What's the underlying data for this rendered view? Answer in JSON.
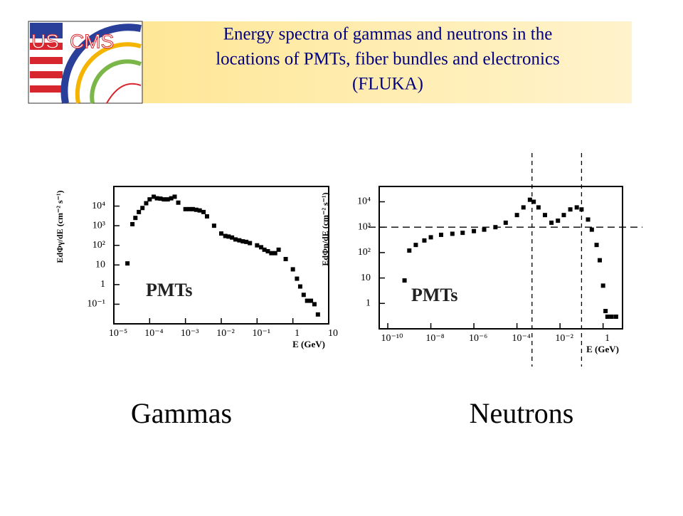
{
  "header": {
    "title_lines": [
      "Energy spectra of gammas and neutrons in the",
      "locations of PMTs, fiber bundles and electronics",
      "(FLUKA)"
    ]
  },
  "logo": {
    "left": "US",
    "right": "CMS"
  },
  "chart_data": [
    {
      "type": "scatter",
      "caption": "Gammas",
      "annotation": "PMTs",
      "xlabel": "E (GeV)",
      "ylabel": "EdΦγ/dE (cm⁻² s⁻¹)",
      "log_x": true,
      "log_y": true,
      "marker": "square",
      "color": "#000000",
      "x": [
        2.4e-05,
        3.3e-05,
        4e-05,
        5e-05,
        6.3e-05,
        8e-05,
        0.0001,
        0.00013,
        0.00016,
        0.0002,
        0.00025,
        0.00032,
        0.0004,
        0.0005,
        0.00063,
        0.001,
        0.0013,
        0.0016,
        0.002,
        0.0025,
        0.0032,
        0.004,
        0.0063,
        0.01,
        0.013,
        0.016,
        0.02,
        0.025,
        0.032,
        0.04,
        0.05,
        0.063,
        0.1,
        0.13,
        0.16,
        0.2,
        0.25,
        0.32,
        0.4,
        0.63,
        1,
        1.3,
        1.6,
        2,
        2.5,
        3.2,
        4,
        5
      ],
      "y": [
        12,
        1200,
        2500,
        5000,
        8000,
        14000,
        22000,
        30000,
        25000,
        24000,
        22000,
        22000,
        25000,
        30000,
        15000,
        7000,
        7000,
        7000,
        6500,
        6000,
        5000,
        3000,
        1000,
        400,
        300,
        280,
        250,
        200,
        180,
        160,
        150,
        130,
        100,
        80,
        60,
        50,
        40,
        40,
        60,
        20,
        6,
        2,
        0.8,
        0.3,
        0.15,
        0.15,
        0.1,
        0.03
      ],
      "xlim": [
        1e-05,
        10
      ],
      "ylim": [
        0.01,
        100000
      ],
      "xticks": [
        {
          "value": 1e-05,
          "label": "10⁻⁵"
        },
        {
          "value": 0.0001,
          "label": "10⁻⁴"
        },
        {
          "value": 0.001,
          "label": "10⁻³"
        },
        {
          "value": 0.01,
          "label": "10⁻²"
        },
        {
          "value": 0.1,
          "label": "10⁻¹"
        },
        1,
        10
      ],
      "yticks": [
        {
          "value": 10000,
          "label": "10⁴"
        },
        {
          "value": 1000,
          "label": "10³"
        },
        {
          "value": 100,
          "label": "10²"
        },
        10,
        1,
        {
          "value": 0.1,
          "label": "10⁻¹"
        }
      ]
    },
    {
      "type": "scatter",
      "caption": "Neutrons",
      "annotation": "PMTs",
      "xlabel": "E (GeV)",
      "ylabel": "EdΦn/dE (cm⁻² s⁻¹)",
      "log_x": true,
      "log_y": true,
      "marker": "square",
      "color": "#000000",
      "x": [
        6e-10,
        1e-09,
        2e-09,
        5e-09,
        1e-08,
        3e-08,
        1e-07,
        3e-07,
        1e-06,
        3e-06,
        1e-05,
        3e-05,
        0.0001,
        0.0002,
        0.0004,
        0.0006,
        0.001,
        0.002,
        0.004,
        0.008,
        0.015,
        0.03,
        0.06,
        0.1,
        0.2,
        0.3,
        0.5,
        0.7,
        1,
        1.3,
        1.6,
        2.5,
        4
      ],
      "y": [
        8,
        120,
        200,
        300,
        400,
        500,
        550,
        600,
        700,
        800,
        1000,
        1500,
        3000,
        6000,
        12000,
        10000,
        6000,
        3000,
        1500,
        1800,
        3000,
        5000,
        6000,
        5000,
        2000,
        800,
        200,
        50,
        5,
        0.5,
        0.3,
        0.3,
        0.3
      ],
      "xlim": [
        4e-11,
        8
      ],
      "ylim": [
        0.1,
        40000
      ],
      "xticks": [
        {
          "value": 1e-10,
          "label": "10⁻¹⁰"
        },
        {
          "value": 1e-08,
          "label": "10⁻⁸"
        },
        {
          "value": 1e-06,
          "label": "10⁻⁶"
        },
        {
          "value": 0.0001,
          "label": "10⁻⁴"
        },
        {
          "value": 0.01,
          "label": "10⁻²"
        },
        1
      ],
      "yticks": [
        {
          "value": 10000,
          "label": "10⁴"
        },
        {
          "value": 1000,
          "label": "10³"
        },
        {
          "value": 100,
          "label": "10²"
        },
        10,
        1
      ],
      "vlines": [
        0.0005,
        0.1
      ],
      "hline": 1000
    }
  ]
}
